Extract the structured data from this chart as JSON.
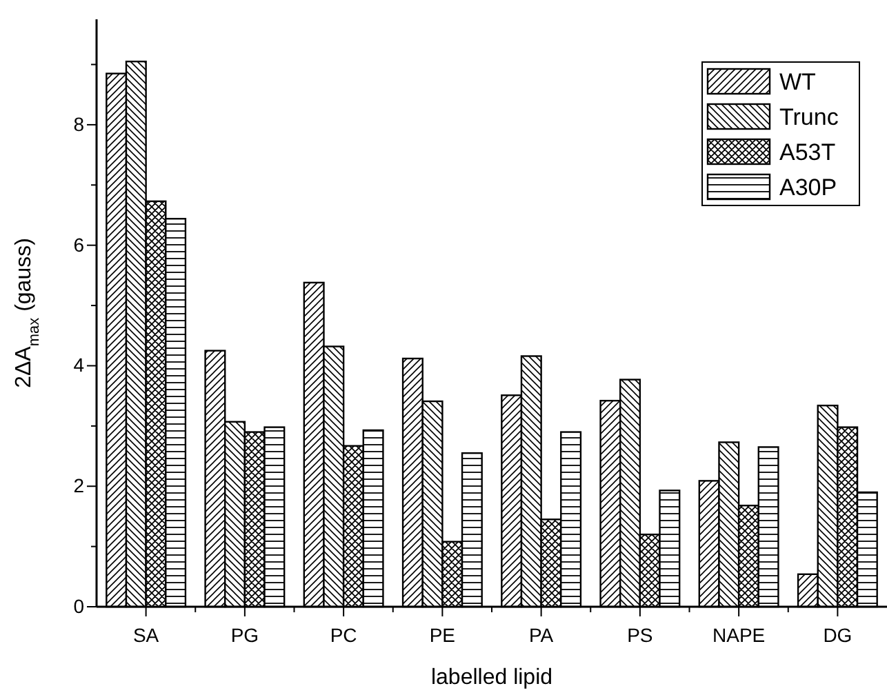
{
  "chart_data": {
    "type": "bar",
    "xlabel": "labelled lipid",
    "ylabel": "2ΔA$_{max}$ (gauss)",
    "categories": [
      "SA",
      "PG",
      "PC",
      "PE",
      "PA",
      "PS",
      "NAPE",
      "DG"
    ],
    "series": [
      {
        "name": "WT",
        "color": "#000000",
        "values": [
          8.85,
          4.25,
          5.38,
          4.12,
          3.51,
          3.42,
          2.09,
          0.54
        ]
      },
      {
        "name": "Trunc",
        "color": "#000000",
        "values": [
          9.05,
          3.07,
          4.32,
          3.41,
          4.16,
          3.77,
          2.73,
          3.34
        ]
      },
      {
        "name": "A53T",
        "color": "#000000",
        "values": [
          6.73,
          2.9,
          2.67,
          1.08,
          1.45,
          1.2,
          1.68,
          2.98
        ]
      },
      {
        "name": "A30P",
        "color": "#000000",
        "values": [
          6.44,
          2.98,
          2.93,
          2.55,
          2.9,
          1.93,
          2.65,
          1.9
        ]
      }
    ],
    "ylim": [
      0,
      9.75
    ],
    "yticks": [
      0,
      {
        "value": 1,
        "label": null
      },
      2,
      {
        "value": 3,
        "label": null
      },
      4,
      {
        "value": 5,
        "label": null
      },
      6,
      {
        "value": 7,
        "label": null
      },
      8,
      {
        "value": 9,
        "label": null
      }
    ],
    "legend": "top right",
    "grid": false
  }
}
